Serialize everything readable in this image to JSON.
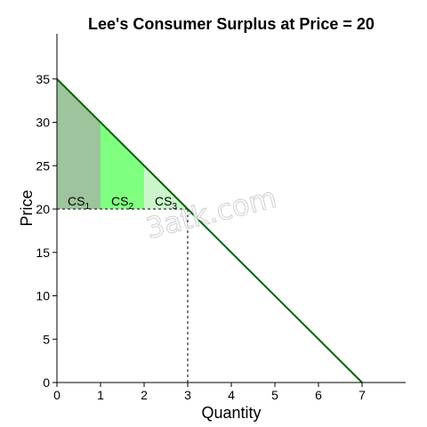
{
  "chart_data": {
    "type": "area",
    "title": "Lee's Consumer Surplus at Price = 20",
    "xlabel": "Quantity",
    "ylabel": "Price",
    "xlim": [
      0,
      8
    ],
    "ylim": [
      0,
      40
    ],
    "x_ticks": [
      0,
      1,
      2,
      3,
      4,
      5,
      6,
      7
    ],
    "y_ticks": [
      0,
      5,
      10,
      15,
      20,
      25,
      30,
      35
    ],
    "demand": {
      "x": [
        0,
        7
      ],
      "y": [
        35,
        0
      ],
      "color": "#006400"
    },
    "price": 20,
    "quantity": 3,
    "surplus_regions": [
      {
        "label_base": "CS",
        "label_sub": "1",
        "x_from": 0,
        "x_to": 1,
        "color": "#9dc49d"
      },
      {
        "label_base": "CS",
        "label_sub": "2",
        "x_from": 1,
        "x_to": 2,
        "color": "#80ff80"
      },
      {
        "label_base": "CS",
        "label_sub": "3",
        "x_from": 2,
        "x_to": 3,
        "color": "#ccf5cc"
      }
    ],
    "watermark": "3atk.com"
  }
}
